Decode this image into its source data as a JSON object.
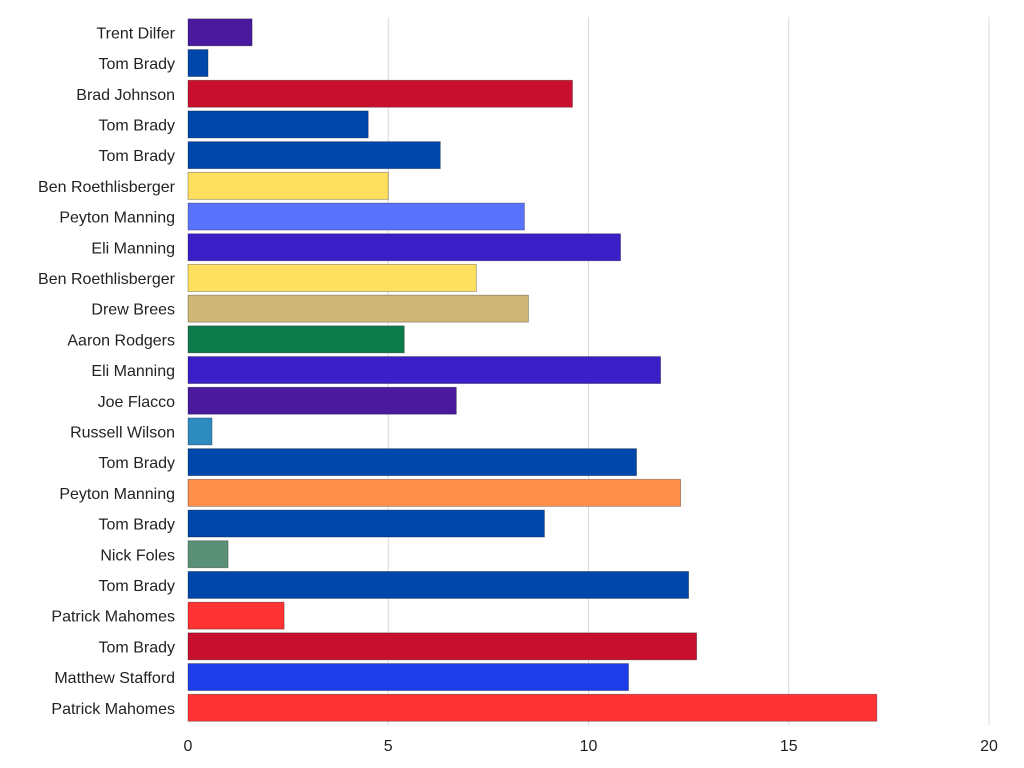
{
  "chart_data": {
    "type": "bar",
    "orientation": "horizontal",
    "title": "",
    "xlabel": "",
    "ylabel": "",
    "xlim": [
      0,
      20
    ],
    "x_ticks": [
      0,
      5,
      10,
      15,
      20
    ],
    "grid": "vertical gridlines",
    "legend": "none",
    "categories": [
      "Trent Dilfer",
      "Tom Brady",
      "Brad Johnson",
      "Tom Brady",
      "Tom Brady",
      "Ben Roethlisberger",
      "Peyton Manning",
      "Eli Manning",
      "Ben Roethlisberger",
      "Drew Brees",
      "Aaron Rodgers",
      "Eli Manning",
      "Joe Flacco",
      "Russell Wilson",
      "Tom Brady",
      "Peyton Manning",
      "Tom Brady",
      "Nick Foles",
      "Tom Brady",
      "Patrick Mahomes",
      "Tom Brady",
      "Matthew Stafford",
      "Patrick Mahomes"
    ],
    "values": [
      1.6,
      0.5,
      9.6,
      4.5,
      6.3,
      5.0,
      8.4,
      10.8,
      7.2,
      8.5,
      5.4,
      11.8,
      6.7,
      0.6,
      11.2,
      12.3,
      8.9,
      1.0,
      12.5,
      2.4,
      12.7,
      11.0,
      17.2
    ],
    "colors": [
      "#4a1a9e",
      "#0047ab",
      "#c8102e",
      "#0047ab",
      "#0047ab",
      "#ffdf5e",
      "#5a73ff",
      "#3a1fc7",
      "#ffdf5e",
      "#d0b777",
      "#0d7a4a",
      "#3a1fc7",
      "#4a1a9e",
      "#2e8bc0",
      "#0047ab",
      "#ff914d",
      "#0047ab",
      "#5a8f78",
      "#0047ab",
      "#ff3333",
      "#c8102e",
      "#1c3de8",
      "#ff3333"
    ]
  }
}
